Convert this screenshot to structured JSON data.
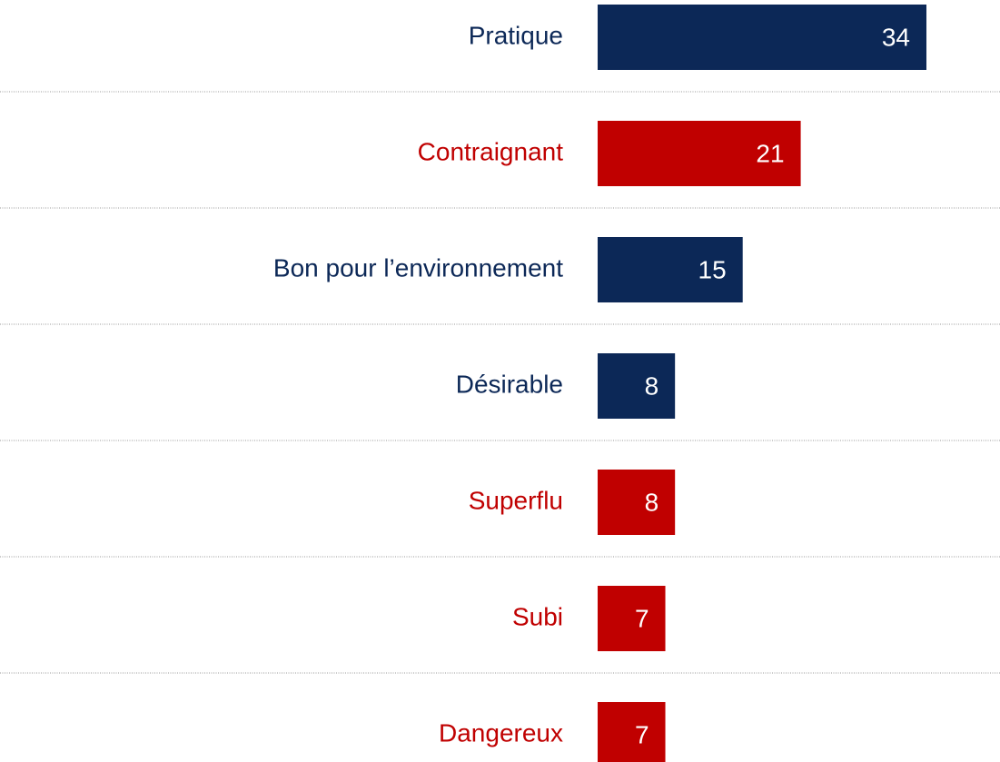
{
  "chart_data": {
    "type": "bar",
    "orientation": "horizontal",
    "categories": [
      "Pratique",
      "Contraignant",
      "Bon pour l’environnement",
      "Désirable",
      "Superflu",
      "Subi",
      "Dangereux"
    ],
    "values": [
      34,
      21,
      15,
      8,
      8,
      7,
      7
    ],
    "colors": [
      "#0c2857",
      "#c00000",
      "#0c2857",
      "#0c2857",
      "#c00000",
      "#c00000",
      "#c00000"
    ]
  }
}
